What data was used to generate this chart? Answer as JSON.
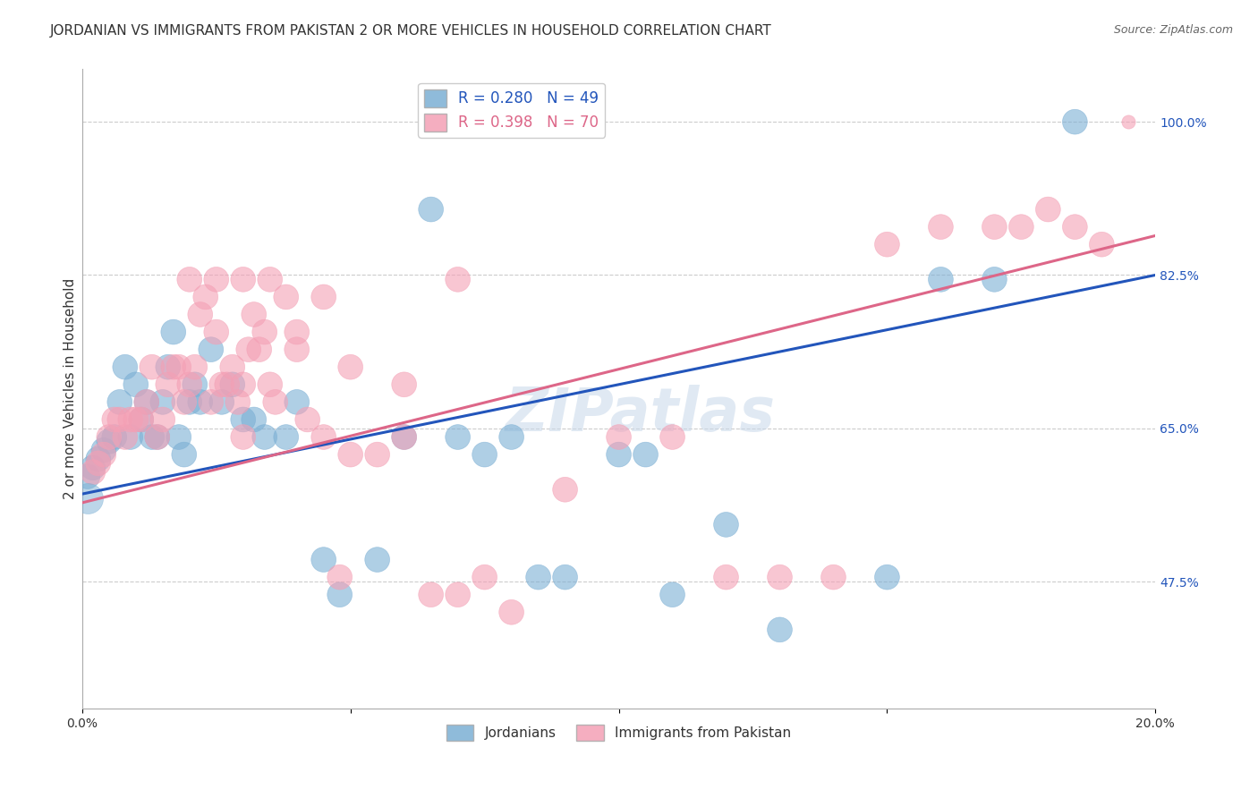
{
  "title": "JORDANIAN VS IMMIGRANTS FROM PAKISTAN 2 OR MORE VEHICLES IN HOUSEHOLD CORRELATION CHART",
  "source": "Source: ZipAtlas.com",
  "ylabel": "2 or more Vehicles in Household",
  "watermark": "ZIPatlas",
  "blue_label": "Jordanians",
  "pink_label": "Immigrants from Pakistan",
  "blue_R": 0.28,
  "blue_N": 49,
  "pink_R": 0.398,
  "pink_N": 70,
  "xmin": 0.0,
  "xmax": 0.2,
  "ymin": 0.33,
  "ymax": 1.06,
  "yticks": [
    0.475,
    0.65,
    0.825,
    1.0
  ],
  "ytick_labels": [
    "47.5%",
    "65.0%",
    "82.5%",
    "100.0%"
  ],
  "xticks": [
    0.0,
    0.05,
    0.1,
    0.15,
    0.2
  ],
  "xtick_labels": [
    "0.0%",
    "",
    "",
    "",
    "20.0%"
  ],
  "blue_color": "#7bafd4",
  "pink_color": "#f4a0b5",
  "blue_line_color": "#2255bb",
  "pink_line_color": "#dd6688",
  "blue_x": [
    0.001,
    0.002,
    0.003,
    0.004,
    0.005,
    0.006,
    0.007,
    0.008,
    0.009,
    0.01,
    0.011,
    0.012,
    0.013,
    0.014,
    0.015,
    0.016,
    0.017,
    0.018,
    0.019,
    0.02,
    0.021,
    0.022,
    0.024,
    0.026,
    0.028,
    0.03,
    0.032,
    0.034,
    0.038,
    0.04,
    0.045,
    0.048,
    0.055,
    0.06,
    0.065,
    0.07,
    0.075,
    0.08,
    0.085,
    0.09,
    0.1,
    0.105,
    0.11,
    0.12,
    0.13,
    0.15,
    0.16,
    0.17,
    0.185
  ],
  "blue_y": [
    0.595,
    0.605,
    0.615,
    0.625,
    0.635,
    0.64,
    0.68,
    0.72,
    0.64,
    0.7,
    0.66,
    0.68,
    0.64,
    0.64,
    0.68,
    0.72,
    0.76,
    0.64,
    0.62,
    0.68,
    0.7,
    0.68,
    0.74,
    0.68,
    0.7,
    0.66,
    0.66,
    0.64,
    0.64,
    0.68,
    0.5,
    0.46,
    0.5,
    0.64,
    0.9,
    0.64,
    0.62,
    0.64,
    0.48,
    0.48,
    0.62,
    0.62,
    0.46,
    0.54,
    0.42,
    0.48,
    0.82,
    0.82,
    1.0
  ],
  "blue_s": [
    20,
    20,
    20,
    20,
    20,
    20,
    20,
    20,
    20,
    20,
    20,
    20,
    20,
    20,
    20,
    20,
    20,
    20,
    20,
    20,
    20,
    20,
    20,
    20,
    20,
    20,
    20,
    20,
    20,
    20,
    20,
    20,
    20,
    20,
    20,
    20,
    20,
    20,
    20,
    20,
    20,
    20,
    20,
    20,
    20,
    20,
    20,
    20,
    20
  ],
  "blue_big_x": [
    0.001
  ],
  "blue_big_y": [
    0.57
  ],
  "blue_big_s": [
    600
  ],
  "pink_x": [
    0.002,
    0.003,
    0.004,
    0.005,
    0.006,
    0.007,
    0.008,
    0.009,
    0.01,
    0.011,
    0.012,
    0.013,
    0.014,
    0.015,
    0.016,
    0.017,
    0.018,
    0.019,
    0.02,
    0.021,
    0.022,
    0.023,
    0.024,
    0.025,
    0.026,
    0.027,
    0.028,
    0.029,
    0.03,
    0.031,
    0.032,
    0.033,
    0.034,
    0.035,
    0.036,
    0.038,
    0.04,
    0.042,
    0.045,
    0.048,
    0.05,
    0.055,
    0.06,
    0.065,
    0.07,
    0.075,
    0.08,
    0.09,
    0.1,
    0.11,
    0.12,
    0.13,
    0.14,
    0.15,
    0.16,
    0.17,
    0.175,
    0.18,
    0.185,
    0.19,
    0.02,
    0.025,
    0.03,
    0.03,
    0.035,
    0.04,
    0.045,
    0.05,
    0.06,
    0.07
  ],
  "pink_y": [
    0.6,
    0.61,
    0.62,
    0.64,
    0.66,
    0.66,
    0.64,
    0.66,
    0.66,
    0.66,
    0.68,
    0.72,
    0.64,
    0.66,
    0.7,
    0.72,
    0.72,
    0.68,
    0.7,
    0.72,
    0.78,
    0.8,
    0.68,
    0.76,
    0.7,
    0.7,
    0.72,
    0.68,
    0.7,
    0.74,
    0.78,
    0.74,
    0.76,
    0.7,
    0.68,
    0.8,
    0.74,
    0.66,
    0.64,
    0.48,
    0.62,
    0.62,
    0.64,
    0.46,
    0.46,
    0.48,
    0.44,
    0.58,
    0.64,
    0.64,
    0.48,
    0.48,
    0.48,
    0.86,
    0.88,
    0.88,
    0.88,
    0.9,
    0.88,
    0.86,
    0.82,
    0.82,
    0.64,
    0.82,
    0.82,
    0.76,
    0.8,
    0.72,
    0.7,
    0.82
  ],
  "pink_s": [
    20,
    20,
    20,
    20,
    20,
    20,
    20,
    20,
    20,
    20,
    20,
    20,
    20,
    20,
    20,
    20,
    20,
    20,
    20,
    20,
    20,
    20,
    20,
    20,
    20,
    20,
    20,
    20,
    20,
    20,
    20,
    20,
    20,
    20,
    20,
    20,
    20,
    20,
    20,
    20,
    20,
    20,
    20,
    20,
    20,
    20,
    20,
    20,
    20,
    20,
    20,
    20,
    20,
    20,
    20,
    20,
    20,
    20,
    20,
    20,
    20,
    20,
    20,
    20,
    20,
    20,
    20,
    20,
    20,
    20
  ],
  "pink_big_x": [
    0.195
  ],
  "pink_big_y": [
    1.0
  ],
  "pink_big_s": [
    120
  ],
  "grid_color": "#cccccc",
  "background_color": "#ffffff",
  "title_fontsize": 11,
  "axis_label_fontsize": 11,
  "tick_fontsize": 10,
  "legend_fontsize": 12,
  "blue_trendline_y0": 0.575,
  "blue_trendline_y1": 0.825,
  "pink_trendline_y0": 0.565,
  "pink_trendline_y1": 0.87
}
